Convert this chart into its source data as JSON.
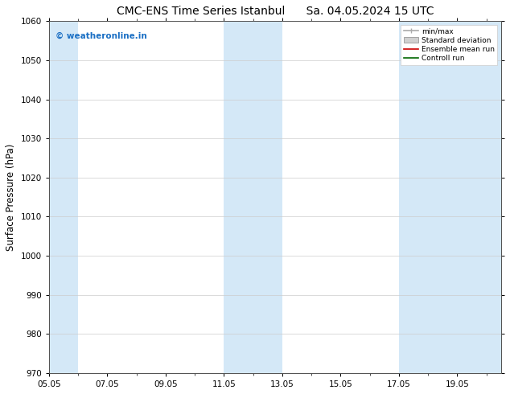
{
  "title_left": "CMC-ENS Time Series Istanbul",
  "title_right": "Sa. 04.05.2024 15 UTC",
  "ylabel": "Surface Pressure (hPa)",
  "ylim": [
    970,
    1060
  ],
  "yticks": [
    970,
    980,
    990,
    1000,
    1010,
    1020,
    1030,
    1040,
    1050,
    1060
  ],
  "xtick_labels": [
    "05.05",
    "07.05",
    "09.05",
    "11.05",
    "13.05",
    "15.05",
    "17.05",
    "19.05"
  ],
  "xtick_positions": [
    0,
    2,
    4,
    6,
    8,
    10,
    12,
    14
  ],
  "xlim": [
    0,
    15.5
  ],
  "shaded_bands": [
    {
      "xstart": -0.1,
      "xend": 1.0,
      "color": "#d4e8f7"
    },
    {
      "xstart": 6.0,
      "xend": 8.0,
      "color": "#d4e8f7"
    },
    {
      "xstart": 12.0,
      "xend": 15.6,
      "color": "#d4e8f7"
    }
  ],
  "watermark_text": "© weatheronline.in",
  "watermark_color": "#1a6fc4",
  "legend_labels": [
    "min/max",
    "Standard deviation",
    "Ensemble mean run",
    "Controll run"
  ],
  "bg_color": "#ffffff",
  "plot_bg_color": "#ffffff",
  "grid_color": "#cccccc",
  "title_fontsize": 10,
  "tick_fontsize": 7.5,
  "ylabel_fontsize": 8.5
}
